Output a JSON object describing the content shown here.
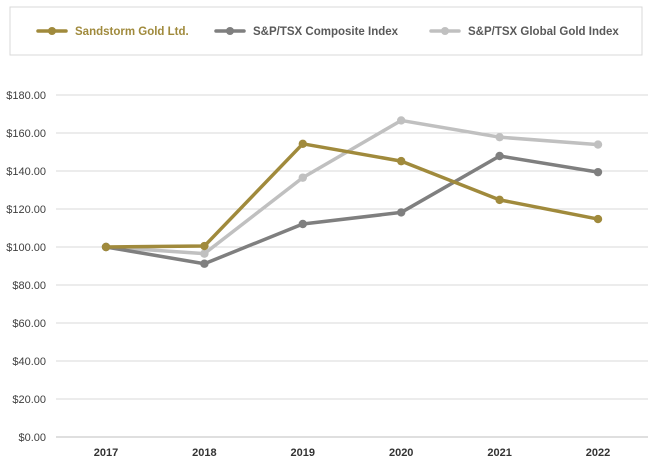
{
  "chart_data": {
    "type": "line",
    "title": "",
    "xlabel": "",
    "ylabel": "",
    "categories": [
      "2017",
      "2018",
      "2019",
      "2020",
      "2021",
      "2022"
    ],
    "ylim": [
      0,
      180
    ],
    "y_ticks": [
      0,
      20,
      40,
      60,
      80,
      100,
      120,
      140,
      160,
      180
    ],
    "y_tick_labels": [
      "$0.00",
      "$20.00",
      "$40.00",
      "$60.00",
      "$80.00",
      "$100.00",
      "$120.00",
      "$140.00",
      "$160.00",
      "$180.00"
    ],
    "grid": true,
    "legend_position": "top",
    "series": [
      {
        "name": "Sandstorm Gold Ltd.",
        "color": "#a08a3c",
        "label_color": "#a08a3c",
        "values": [
          100,
          100.5,
          154.3,
          145.2,
          124.8,
          114.7
        ]
      },
      {
        "name": "S&P/TSX Composite Index",
        "color": "#7f7f7f",
        "label_color": "#595959",
        "values": [
          100,
          91.2,
          112.1,
          118.2,
          147.9,
          139.4
        ]
      },
      {
        "name": "S&P/TSX Global Gold Index",
        "color": "#c0c0c0",
        "label_color": "#595959",
        "values": [
          100,
          96.5,
          136.5,
          166.6,
          157.8,
          153.9
        ]
      }
    ]
  }
}
